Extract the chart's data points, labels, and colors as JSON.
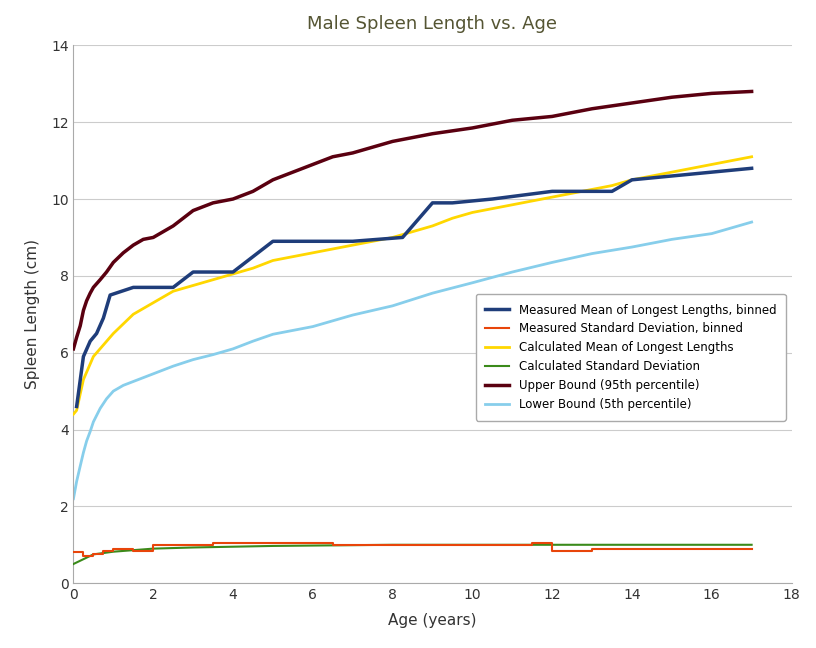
{
  "title": "Male Spleen Length vs. Age",
  "xlabel": "Age (years)",
  "ylabel": "Spleen Length (cm)",
  "xlim": [
    0,
    18
  ],
  "ylim": [
    0,
    14
  ],
  "xticks": [
    0,
    2,
    4,
    6,
    8,
    10,
    12,
    14,
    16,
    18
  ],
  "yticks": [
    0,
    2,
    4,
    6,
    8,
    10,
    12,
    14
  ],
  "background_color": "#ffffff",
  "colors": {
    "measured_mean": "#1f3d7a",
    "measured_std": "#e8450a",
    "calc_mean": "#ffd700",
    "calc_std": "#3a8a1a",
    "upper_bound": "#5a0010",
    "lower_bound": "#87ceeb"
  },
  "legend_labels": [
    "Measured Mean of Longest Lengths, binned",
    "Measured Standard Deviation, binned",
    "Calculated Mean of Longest Lengths",
    "Calculated Standard Deviation",
    "Upper Bound (95th percentile)",
    "Lower Bound (5th percentile)"
  ],
  "measured_mean_x": [
    0.08,
    0.08,
    0.25,
    0.25,
    0.42,
    0.42,
    0.58,
    0.58,
    0.75,
    0.75,
    0.92,
    0.92,
    1.5,
    1.5,
    2.0,
    2.0,
    2.5,
    2.5,
    3.0,
    3.0,
    3.5,
    3.5,
    4.0,
    4.0,
    5.0,
    5.0,
    6.0,
    6.0,
    7.0,
    7.0,
    8.25,
    8.25,
    9.0,
    9.0,
    9.5,
    9.5,
    10.5,
    10.5,
    12.0,
    12.0,
    13.5,
    13.5,
    14.0,
    14.0,
    17.0
  ],
  "measured_mean_y": [
    4.6,
    4.6,
    5.9,
    5.9,
    6.3,
    6.3,
    6.5,
    6.5,
    6.9,
    6.9,
    7.5,
    7.5,
    7.7,
    7.7,
    7.7,
    7.7,
    7.7,
    7.7,
    8.1,
    8.1,
    8.1,
    8.1,
    8.1,
    8.1,
    8.9,
    8.9,
    8.9,
    8.9,
    8.9,
    8.9,
    9.0,
    9.0,
    9.9,
    9.9,
    9.9,
    9.9,
    10.0,
    10.0,
    10.2,
    10.2,
    10.2,
    10.2,
    10.5,
    10.5,
    10.8
  ],
  "measured_std_x": [
    0.0,
    0.25,
    0.25,
    0.5,
    0.5,
    0.75,
    0.75,
    1.0,
    1.0,
    1.5,
    1.5,
    2.0,
    2.0,
    3.5,
    3.5,
    6.5,
    6.5,
    11.5,
    11.5,
    12.0,
    12.0,
    13.0,
    13.0,
    17.0
  ],
  "measured_std_y": [
    0.8,
    0.8,
    0.7,
    0.7,
    0.75,
    0.75,
    0.85,
    0.85,
    0.9,
    0.9,
    0.85,
    0.85,
    1.0,
    1.0,
    1.05,
    1.05,
    1.0,
    1.0,
    1.05,
    1.05,
    0.85,
    0.85,
    0.9,
    0.9
  ],
  "calc_mean_x": [
    0.0,
    0.08,
    0.25,
    0.5,
    1.0,
    1.5,
    2.0,
    2.5,
    3.0,
    3.5,
    4.0,
    4.5,
    5.0,
    5.5,
    6.0,
    6.5,
    7.0,
    7.5,
    8.0,
    8.5,
    9.0,
    9.5,
    10.0,
    10.5,
    11.0,
    11.5,
    12.0,
    12.5,
    13.0,
    13.5,
    14.0,
    14.5,
    15.0,
    15.5,
    16.0,
    16.5,
    17.0
  ],
  "calc_mean_y": [
    4.4,
    4.5,
    5.3,
    5.9,
    6.5,
    7.0,
    7.3,
    7.6,
    7.75,
    7.9,
    8.05,
    8.2,
    8.4,
    8.5,
    8.6,
    8.7,
    8.8,
    8.9,
    9.0,
    9.15,
    9.3,
    9.5,
    9.65,
    9.75,
    9.85,
    9.95,
    10.05,
    10.15,
    10.25,
    10.35,
    10.5,
    10.6,
    10.7,
    10.8,
    10.9,
    11.0,
    11.1
  ],
  "calc_std_x": [
    0.0,
    0.5,
    1.0,
    2.0,
    3.0,
    4.0,
    5.0,
    6.0,
    7.0,
    8.0,
    9.0,
    10.0,
    11.0,
    12.0,
    13.0,
    14.0,
    15.0,
    16.0,
    17.0
  ],
  "calc_std_y": [
    0.5,
    0.75,
    0.82,
    0.9,
    0.93,
    0.95,
    0.97,
    0.98,
    0.99,
    1.0,
    1.0,
    1.0,
    1.0,
    1.0,
    1.0,
    1.0,
    1.0,
    1.0,
    1.0
  ],
  "upper_bound_x": [
    0.0,
    0.08,
    0.17,
    0.25,
    0.33,
    0.42,
    0.5,
    0.67,
    0.83,
    1.0,
    1.25,
    1.5,
    1.75,
    2.0,
    2.5,
    3.0,
    3.5,
    4.0,
    4.5,
    5.0,
    5.5,
    6.0,
    6.5,
    7.0,
    7.5,
    8.0,
    9.0,
    10.0,
    11.0,
    12.0,
    13.0,
    14.0,
    15.0,
    16.0,
    17.0
  ],
  "upper_bound_y": [
    6.1,
    6.4,
    6.7,
    7.1,
    7.35,
    7.55,
    7.7,
    7.9,
    8.1,
    8.35,
    8.6,
    8.8,
    8.95,
    9.0,
    9.3,
    9.7,
    9.9,
    10.0,
    10.2,
    10.5,
    10.7,
    10.9,
    11.1,
    11.2,
    11.35,
    11.5,
    11.7,
    11.85,
    12.05,
    12.15,
    12.35,
    12.5,
    12.65,
    12.75,
    12.8
  ],
  "lower_bound_x": [
    0.0,
    0.08,
    0.17,
    0.25,
    0.33,
    0.42,
    0.5,
    0.67,
    0.83,
    1.0,
    1.25,
    1.5,
    1.75,
    2.0,
    2.5,
    3.0,
    3.5,
    4.0,
    4.5,
    5.0,
    5.5,
    6.0,
    6.5,
    7.0,
    7.5,
    8.0,
    9.0,
    10.0,
    11.0,
    12.0,
    13.0,
    14.0,
    15.0,
    16.0,
    17.0
  ],
  "lower_bound_y": [
    2.2,
    2.65,
    3.05,
    3.4,
    3.7,
    3.95,
    4.2,
    4.55,
    4.8,
    5.0,
    5.15,
    5.25,
    5.35,
    5.45,
    5.65,
    5.82,
    5.95,
    6.1,
    6.3,
    6.48,
    6.58,
    6.68,
    6.83,
    6.98,
    7.1,
    7.22,
    7.55,
    7.82,
    8.1,
    8.35,
    8.58,
    8.75,
    8.95,
    9.1,
    9.4
  ]
}
